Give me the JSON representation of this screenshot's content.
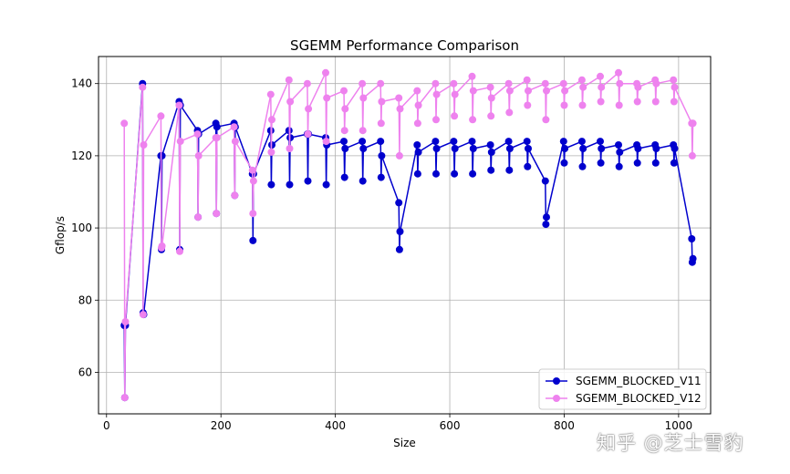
{
  "chart_data": {
    "type": "line",
    "title": "SGEMM Performance Comparison",
    "xlabel": "Size",
    "ylabel": "Gflop/s",
    "xlim": [
      -14,
      1056
    ],
    "ylim": [
      48.5,
      147.5
    ],
    "xticks": [
      0,
      200,
      400,
      600,
      800,
      1000
    ],
    "yticks": [
      60,
      80,
      100,
      120,
      140
    ],
    "grid": true,
    "legend_position": "lower-right",
    "series": [
      {
        "name": "SGEMM_BLOCKED_V11",
        "color": "#0000cd",
        "x": [
          31,
          32,
          33,
          63,
          64,
          65,
          95,
          96,
          97,
          127,
          128,
          129,
          159,
          160,
          161,
          191,
          192,
          193,
          223,
          224,
          225,
          255,
          256,
          257,
          287,
          288,
          289,
          319,
          320,
          321,
          351,
          352,
          353,
          383,
          384,
          385,
          415,
          416,
          417,
          447,
          448,
          449,
          479,
          480,
          481,
          511,
          512,
          513,
          543,
          544,
          545,
          575,
          576,
          577,
          607,
          608,
          609,
          639,
          640,
          641,
          671,
          672,
          673,
          703,
          704,
          705,
          735,
          736,
          737,
          767,
          768,
          769,
          799,
          800,
          801,
          831,
          832,
          833,
          863,
          864,
          865,
          895,
          896,
          897,
          927,
          928,
          929,
          959,
          960,
          961,
          991,
          992,
          993,
          1023,
          1024,
          1025
        ],
        "values": [
          73,
          53,
          73,
          140,
          76.5,
          76,
          120,
          94,
          120,
          135,
          94,
          134,
          127,
          103,
          126,
          129,
          104,
          128,
          129,
          109,
          128,
          115,
          96.5,
          115,
          127,
          112,
          123,
          127,
          112,
          125,
          126,
          113,
          126,
          125,
          112,
          123,
          124,
          114,
          122,
          124,
          113,
          122,
          124,
          114,
          120,
          107,
          94,
          99,
          123,
          115,
          121,
          124,
          115,
          122,
          124,
          115,
          122,
          124,
          115,
          122,
          123,
          116,
          121,
          124,
          116,
          122,
          124,
          117,
          122,
          113,
          101,
          103,
          124,
          118,
          122,
          124,
          117,
          122,
          124,
          118,
          122,
          123,
          117,
          121,
          123,
          118,
          122,
          123,
          118,
          122,
          123,
          118,
          122,
          97,
          90.5,
          91.5
        ]
      },
      {
        "name": "SGEMM_BLOCKED_V12",
        "color": "#ee82ee",
        "x": [
          31,
          32,
          33,
          63,
          64,
          65,
          95,
          96,
          97,
          127,
          128,
          129,
          159,
          160,
          161,
          191,
          192,
          193,
          223,
          224,
          225,
          255,
          256,
          257,
          287,
          288,
          289,
          319,
          320,
          321,
          351,
          352,
          353,
          383,
          384,
          385,
          415,
          416,
          417,
          447,
          448,
          449,
          479,
          480,
          481,
          511,
          512,
          513,
          543,
          544,
          545,
          575,
          576,
          577,
          607,
          608,
          609,
          639,
          640,
          641,
          671,
          672,
          673,
          703,
          704,
          705,
          735,
          736,
          737,
          767,
          768,
          769,
          799,
          800,
          801,
          831,
          832,
          833,
          863,
          864,
          865,
          895,
          896,
          897,
          927,
          928,
          929,
          959,
          960,
          961,
          991,
          992,
          993,
          1023,
          1024,
          1025
        ],
        "values": [
          129,
          53,
          74,
          139,
          76,
          123,
          131,
          94.5,
          95,
          134,
          93.5,
          124,
          126,
          103,
          120,
          125,
          104,
          125,
          128,
          109,
          124,
          116,
          104,
          113,
          137,
          121,
          130,
          141,
          122,
          135,
          140,
          126,
          133,
          143,
          124,
          136,
          138,
          127,
          133,
          140,
          127,
          136,
          140,
          129,
          135,
          136,
          120,
          133,
          138,
          129,
          134,
          140,
          130,
          137,
          140,
          131,
          137,
          142,
          130,
          138,
          139,
          131,
          136,
          140,
          132,
          138,
          141,
          134,
          138,
          140,
          130,
          138,
          140,
          134,
          138,
          141,
          134,
          139,
          142,
          135,
          139,
          143,
          134,
          140,
          140,
          135,
          139,
          141,
          135,
          140,
          141,
          135,
          139,
          129,
          120,
          129
        ]
      }
    ]
  },
  "watermark": "知乎 @芝士雪豹"
}
